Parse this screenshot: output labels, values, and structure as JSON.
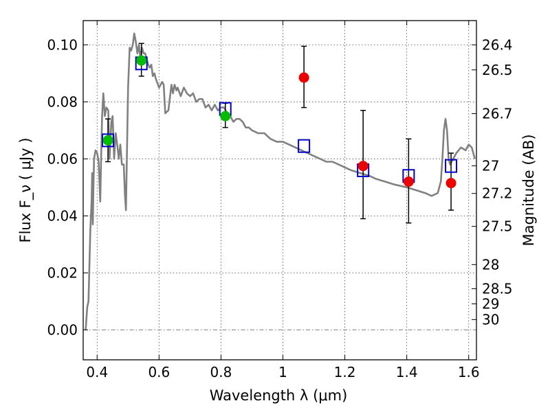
{
  "chart_data": {
    "type": "scatter",
    "xlabel": "Wavelength  λ (μm)",
    "ylabel": "Flux  F_ν  ( μJy )",
    "y2label": "Magnitude (AB)",
    "xlim": [
      0.355,
      1.625
    ],
    "ylim": [
      -0.0105,
      0.1085
    ],
    "grid": true,
    "x_ticks": [
      "0.4",
      "0.6",
      "0.8",
      "1",
      "1.2",
      "1.4",
      "1.6"
    ],
    "x_tick_values": [
      0.4,
      0.6,
      0.8,
      1.0,
      1.2,
      1.4,
      1.6
    ],
    "y_ticks": [
      "0.00",
      "0.02",
      "0.04",
      "0.06",
      "0.08",
      "0.10"
    ],
    "y_tick_values": [
      0.0,
      0.02,
      0.04,
      0.06,
      0.08,
      0.1
    ],
    "y2_ticks": [
      "26.4",
      "26.5",
      "26.7",
      "27",
      "27.2",
      "27.5",
      "28",
      "28.5",
      "29",
      "30"
    ],
    "y2_tick_values": [
      26.4,
      26.5,
      26.7,
      27.0,
      27.2,
      27.5,
      28.0,
      28.5,
      29.0,
      30.0
    ],
    "colors": {
      "model": "#808080",
      "model_points": "#0000cc",
      "detections_optical": "#00bb00",
      "detections_ir": "#ee0000",
      "zero_line": "#808080"
    },
    "series": [
      {
        "kind": "model_spectrum",
        "x": [
          0.363,
          0.368,
          0.372,
          0.378,
          0.382,
          0.384,
          0.386,
          0.388,
          0.39,
          0.395,
          0.4,
          0.405,
          0.41,
          0.413,
          0.416,
          0.42,
          0.425,
          0.43,
          0.436,
          0.44,
          0.446,
          0.45,
          0.455,
          0.46,
          0.465,
          0.47,
          0.475,
          0.48,
          0.486,
          0.49,
          0.493,
          0.5,
          0.505,
          0.51,
          0.515,
          0.52,
          0.525,
          0.53,
          0.535,
          0.54,
          0.545,
          0.55,
          0.555,
          0.56,
          0.565,
          0.57,
          0.575,
          0.58,
          0.585,
          0.59,
          0.6,
          0.61,
          0.615,
          0.62,
          0.63,
          0.64,
          0.645,
          0.65,
          0.656,
          0.66,
          0.67,
          0.68,
          0.69,
          0.7,
          0.71,
          0.72,
          0.73,
          0.74,
          0.75,
          0.76,
          0.77,
          0.78,
          0.79,
          0.8,
          0.81,
          0.82,
          0.83,
          0.84,
          0.85,
          0.86,
          0.87,
          0.88,
          0.89,
          0.9,
          0.92,
          0.94,
          0.96,
          0.98,
          1.0,
          1.02,
          1.04,
          1.06,
          1.08,
          1.1,
          1.12,
          1.14,
          1.16,
          1.18,
          1.2,
          1.22,
          1.25,
          1.28,
          1.3,
          1.33,
          1.36,
          1.4,
          1.43,
          1.46,
          1.48,
          1.5,
          1.51,
          1.515,
          1.52,
          1.525,
          1.53,
          1.535,
          1.54,
          1.55,
          1.56,
          1.575,
          1.59,
          1.6,
          1.61,
          1.62
        ],
        "y": [
          0.0,
          0.008,
          0.01,
          0.035,
          0.045,
          0.055,
          0.037,
          0.05,
          0.06,
          0.063,
          0.062,
          0.059,
          0.045,
          0.06,
          0.075,
          0.083,
          0.075,
          0.078,
          0.077,
          0.06,
          0.073,
          0.075,
          0.06,
          0.069,
          0.065,
          0.06,
          0.065,
          0.058,
          0.058,
          0.047,
          0.042,
          0.085,
          0.099,
          0.098,
          0.1,
          0.104,
          0.101,
          0.097,
          0.1,
          0.095,
          0.099,
          0.097,
          0.097,
          0.095,
          0.093,
          0.092,
          0.093,
          0.089,
          0.09,
          0.088,
          0.085,
          0.087,
          0.086,
          0.076,
          0.077,
          0.086,
          0.083,
          0.086,
          0.084,
          0.085,
          0.082,
          0.085,
          0.083,
          0.082,
          0.083,
          0.08,
          0.081,
          0.081,
          0.078,
          0.079,
          0.077,
          0.079,
          0.077,
          0.078,
          0.078,
          0.076,
          0.075,
          0.073,
          0.074,
          0.074,
          0.073,
          0.071,
          0.071,
          0.07,
          0.069,
          0.069,
          0.067,
          0.066,
          0.066,
          0.065,
          0.064,
          0.063,
          0.062,
          0.061,
          0.06,
          0.059,
          0.059,
          0.058,
          0.057,
          0.056,
          0.055,
          0.054,
          0.053,
          0.052,
          0.051,
          0.05,
          0.049,
          0.048,
          0.047,
          0.048,
          0.052,
          0.06,
          0.07,
          0.074,
          0.07,
          0.06,
          0.058,
          0.06,
          0.062,
          0.064,
          0.063,
          0.065,
          0.064,
          0.06
        ]
      },
      {
        "kind": "model_points",
        "x": [
          0.435,
          0.543,
          0.814,
          1.068,
          1.259,
          1.406,
          1.543
        ],
        "y": [
          0.0665,
          0.0935,
          0.0775,
          0.0645,
          0.056,
          0.054,
          0.0575
        ]
      },
      {
        "kind": "detections_optical",
        "x": [
          0.435,
          0.543,
          0.814
        ],
        "y": [
          0.0665,
          0.0945,
          0.075
        ],
        "err_low": [
          0.0075,
          0.0055,
          0.004
        ],
        "err_high": [
          0.0075,
          0.006,
          0.0045
        ]
      },
      {
        "kind": "detections_ir",
        "x": [
          1.068,
          1.259,
          1.406,
          1.543
        ],
        "y": [
          0.0885,
          0.0575,
          0.052,
          0.0515
        ],
        "err_low": [
          0.0105,
          0.0185,
          0.0145,
          0.0095
        ],
        "err_high": [
          0.011,
          0.0195,
          0.015,
          0.0105
        ]
      }
    ]
  }
}
